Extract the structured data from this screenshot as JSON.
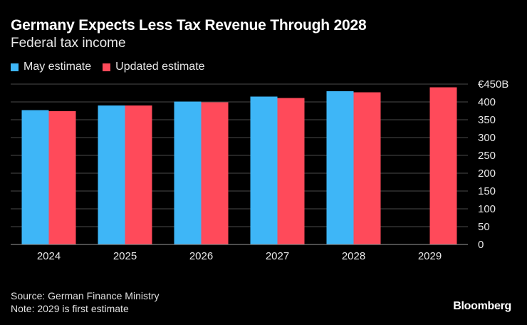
{
  "chart_data": {
    "type": "bar",
    "title": "Germany Expects Less Tax Revenue Through 2028",
    "subtitle": "Federal tax income",
    "categories": [
      "2024",
      "2025",
      "2026",
      "2027",
      "2028",
      "2029"
    ],
    "series": [
      {
        "name": "May estimate",
        "color": "#3eb6f7",
        "values": [
          377,
          390,
          401,
          415,
          430,
          null
        ]
      },
      {
        "name": "Updated estimate",
        "color": "#ff4a5a",
        "values": [
          374,
          390,
          399,
          411,
          427,
          441
        ]
      }
    ],
    "y_ticks": [
      {
        "value": 0,
        "label": "0"
      },
      {
        "value": 50,
        "label": "50"
      },
      {
        "value": 100,
        "label": "100"
      },
      {
        "value": 150,
        "label": "150"
      },
      {
        "value": 200,
        "label": "200"
      },
      {
        "value": 250,
        "label": "250"
      },
      {
        "value": 300,
        "label": "300"
      },
      {
        "value": 350,
        "label": "350"
      },
      {
        "value": 400,
        "label": "400"
      },
      {
        "value": 450,
        "label": "€450B"
      }
    ],
    "ylim": [
      0,
      450
    ],
    "xlabel": "",
    "ylabel": "",
    "grid": true,
    "legend_position": "top-left"
  },
  "footer": {
    "source": "Source: German Finance Ministry",
    "note": "Note: 2029 is first estimate"
  },
  "brand": "Bloomberg"
}
